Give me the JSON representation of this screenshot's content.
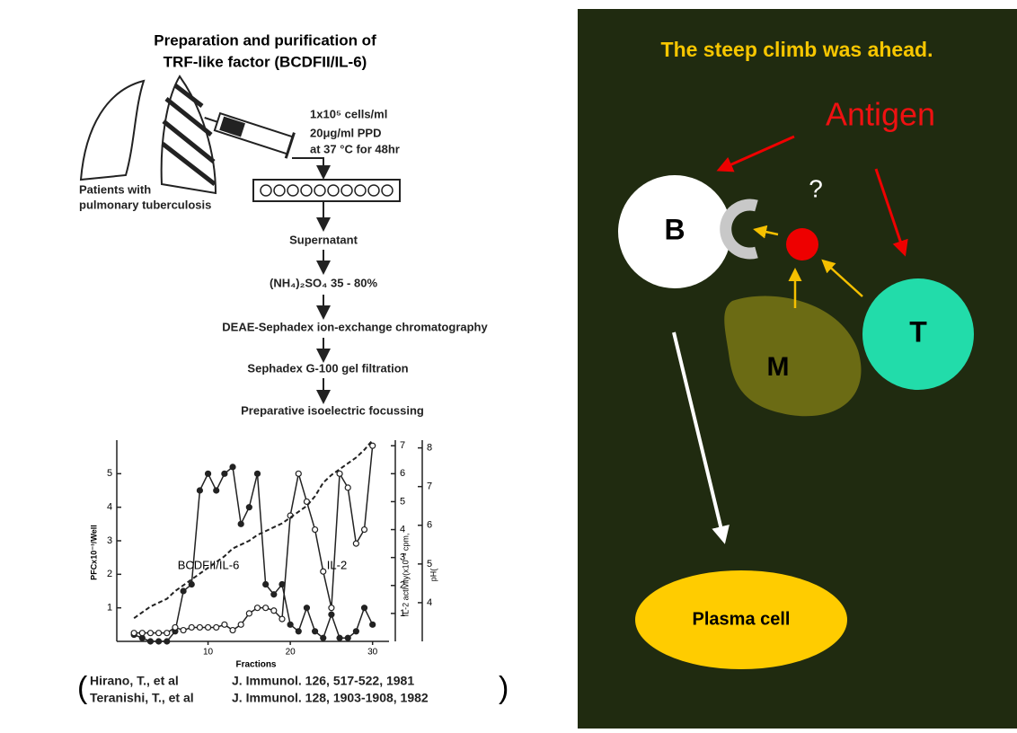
{
  "left_figure": {
    "title": [
      "Preparation and purification of",
      "TRF-like factor (BCDFII/IL-6)"
    ],
    "conditions": [
      "1x10⁵ cells/ml",
      "20μg/ml PPD",
      "at 37 °C for 48hr"
    ],
    "patients": [
      "Patients with",
      "pulmonary tuberculosis"
    ],
    "steps": [
      "Supernatant",
      "(NH₄)₂SO₄  35 - 80%",
      "DEAE-Sephadex ion-exchange chromatography",
      "Sephadex G-100 gel filtration",
      "Preparative isoelectric focussing"
    ],
    "chart": {
      "type": "line",
      "x_label": "Fractions",
      "x": [
        1,
        2,
        3,
        4,
        5,
        6,
        7,
        8,
        9,
        10,
        11,
        12,
        13,
        14,
        15,
        16,
        17,
        18,
        19,
        20,
        21,
        22,
        23,
        24,
        25,
        26,
        27,
        28,
        29,
        30
      ],
      "xlim": [
        0,
        32
      ],
      "xticks": [
        10,
        20,
        30
      ],
      "y_label": "PFCx10⁻³/Well",
      "ylim": [
        0,
        6
      ],
      "yticks": [
        1,
        2,
        3,
        4,
        5
      ],
      "y2_label": "IL-2 activity(x10⁻³ cpm,",
      "y2lim": [
        0,
        7.2
      ],
      "y2ticks": [
        1,
        2,
        3,
        4,
        5,
        6,
        7
      ],
      "y3_label": "pH(",
      "y3lim": [
        3,
        8.2
      ],
      "y3ticks": [
        4,
        5,
        6,
        7,
        8
      ],
      "series": [
        {
          "name": "BCDFII/IL-6",
          "color": "#222222",
          "marker": "filled",
          "values": [
            0.2,
            0.1,
            0,
            0,
            0,
            0.3,
            1.5,
            1.7,
            4.5,
            5,
            4.5,
            5,
            5.2,
            3.5,
            4,
            5,
            1.7,
            1.4,
            1.7,
            0.5,
            0.3,
            1,
            0.3,
            0.1,
            0.8,
            0.1,
            0.1,
            0.3,
            1,
            0.5
          ]
        },
        {
          "name": "IL-2",
          "color": "#222222",
          "marker": "open",
          "axis": "y2",
          "values": [
            0.3,
            0.3,
            0.3,
            0.3,
            0.3,
            0.5,
            0.4,
            0.5,
            0.5,
            0.5,
            0.5,
            0.6,
            0.4,
            0.6,
            1,
            1.2,
            1.2,
            1.1,
            0.8,
            4.5,
            6,
            5,
            4,
            2.5,
            1.2,
            6,
            5.5,
            3.5,
            4,
            7
          ]
        },
        {
          "color": "#222222",
          "marker": "dashed",
          "axis": "y3",
          "values": [
            3.6,
            3.75,
            3.9,
            4,
            4.1,
            4.3,
            4.45,
            4.6,
            4.75,
            4.9,
            5.05,
            5.2,
            5.4,
            5.5,
            5.6,
            5.75,
            5.85,
            5.95,
            6.05,
            6.2,
            6.35,
            6.5,
            6.75,
            7.1,
            7.3,
            7.45,
            7.6,
            7.75,
            7.95,
            8.2
          ]
        }
      ]
    },
    "references": [
      {
        "authors": "Hirano, T., et al",
        "journal": "J. Immunol. 126, 517-522, 1981"
      },
      {
        "authors": "Teranishi, T., et al",
        "journal": "J. Immunol. 128, 1903-1908, 1982"
      }
    ]
  },
  "diagram": {
    "title": "The steep climb was ahead.",
    "antigen": "Antigen",
    "question": "?",
    "b_cell": "B",
    "macrophage": "M",
    "t_cell": "T",
    "plasma_cell": "Plasma cell"
  }
}
